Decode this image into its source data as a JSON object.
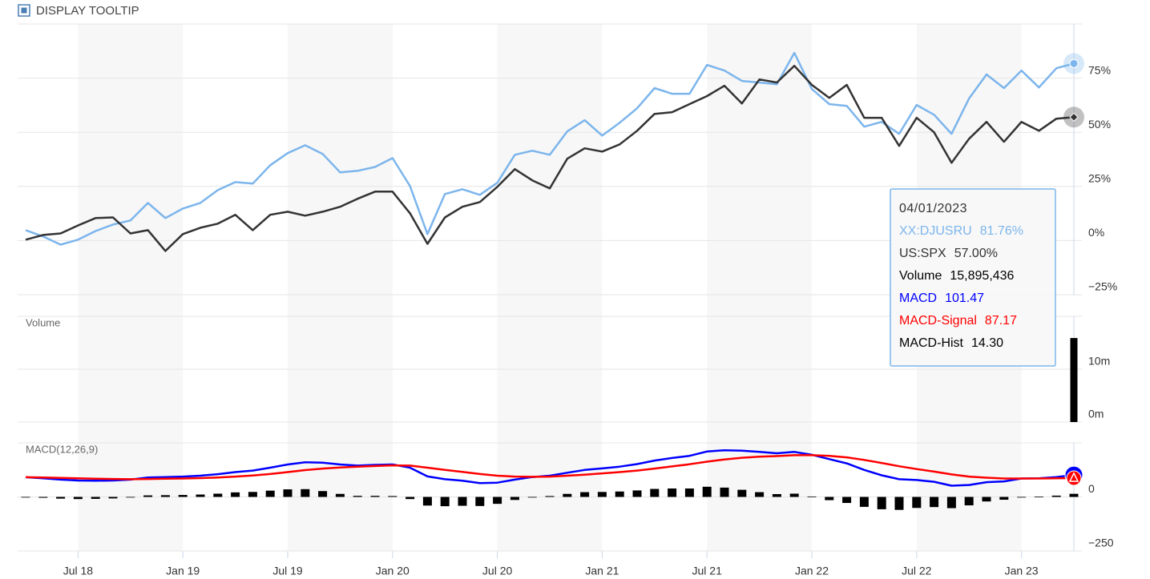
{
  "chart_data": {
    "type": "stock",
    "toggle_label": "DISPLAY TOOLTIP",
    "x": [
      "2018-04",
      "2018-05",
      "2018-06",
      "2018-07",
      "2018-08",
      "2018-09",
      "2018-10",
      "2018-11",
      "2018-12",
      "2019-01",
      "2019-02",
      "2019-03",
      "2019-04",
      "2019-05",
      "2019-06",
      "2019-07",
      "2019-08",
      "2019-09",
      "2019-10",
      "2019-11",
      "2019-12",
      "2020-01",
      "2020-02",
      "2020-03",
      "2020-04",
      "2020-05",
      "2020-06",
      "2020-07",
      "2020-08",
      "2020-09",
      "2020-10",
      "2020-11",
      "2020-12",
      "2021-01",
      "2021-02",
      "2021-03",
      "2021-04",
      "2021-05",
      "2021-06",
      "2021-07",
      "2021-08",
      "2021-09",
      "2021-10",
      "2021-11",
      "2021-12",
      "2022-01",
      "2022-02",
      "2022-03",
      "2022-04",
      "2022-05",
      "2022-06",
      "2022-07",
      "2022-08",
      "2022-09",
      "2022-10",
      "2022-11",
      "2022-12",
      "2023-01",
      "2023-02",
      "2023-03",
      "2023-04"
    ],
    "xticks": [
      {
        "value": "2018-07",
        "label": "Jul 18"
      },
      {
        "value": "2019-01",
        "label": "Jan 19"
      },
      {
        "value": "2019-07",
        "label": "Jul 19"
      },
      {
        "value": "2020-01",
        "label": "Jan 20"
      },
      {
        "value": "2020-07",
        "label": "Jul 20"
      },
      {
        "value": "2021-01",
        "label": "Jan 21"
      },
      {
        "value": "2021-07",
        "label": "Jul 21"
      },
      {
        "value": "2022-01",
        "label": "Jan 22"
      },
      {
        "value": "2022-07",
        "label": "Jul 22"
      },
      {
        "value": "2023-01",
        "label": "Jan 23"
      }
    ],
    "panels": [
      {
        "type": "line",
        "ylim": [
          -25,
          100
        ],
        "yticks": [
          {
            "value": -25,
            "label": "−25%"
          },
          {
            "value": 0,
            "label": "0%"
          },
          {
            "value": 25,
            "label": "25%"
          },
          {
            "value": 50,
            "label": "50%"
          },
          {
            "value": 75,
            "label": "75%"
          }
        ],
        "series": [
          {
            "name": "XX:DJUSRU",
            "color": "#7cb5ec",
            "values": [
              4.8,
              1.9,
              -1.9,
              0.4,
              4.4,
              7.4,
              9.3,
              17.4,
              10.4,
              14.8,
              17.4,
              23.3,
              27,
              26.3,
              34.8,
              40.4,
              44,
              40,
              31.5,
              32.2,
              34,
              38.1,
              25.2,
              3,
              21.5,
              23.7,
              21.1,
              26.7,
              39.6,
              41.5,
              39.6,
              50.4,
              55.6,
              48.5,
              54.4,
              61.1,
              70.4,
              67.8,
              67.8,
              81.1,
              78.5,
              73.7,
              73,
              72.2,
              86.7,
              70,
              63,
              62.2,
              52.6,
              54.8,
              49.3,
              62.6,
              58.1,
              49.3,
              65.6,
              76.7,
              70.4,
              78.5,
              70.7,
              79.6,
              81.76
            ]
          },
          {
            "name": "US:SPX",
            "color": "#333333",
            "values": [
              0.4,
              2.6,
              3.3,
              7,
              10.4,
              10.7,
              3.3,
              4.8,
              -4.8,
              3,
              5.9,
              7.8,
              11.9,
              4.8,
              11.9,
              13.3,
              11.5,
              13.3,
              15.6,
              19.3,
              22.6,
              22.6,
              12.6,
              -1.5,
              10.7,
              15.6,
              17.8,
              24.8,
              33,
              27.8,
              24.1,
              37.8,
              42.6,
              41.1,
              44.4,
              50.7,
              58.5,
              59.3,
              63,
              66.7,
              71.5,
              63.3,
              74.4,
              73,
              80.7,
              71.9,
              65.9,
              71.9,
              56.7,
              56.7,
              43.7,
              56.7,
              50,
              35.9,
              47,
              54.8,
              45.6,
              54.8,
              50.7,
              56.3,
              57
            ]
          }
        ]
      },
      {
        "type": "bar",
        "title": "Volume",
        "ylim": [
          0,
          20000000
        ],
        "yticks": [
          {
            "value": 0,
            "label": "0m"
          },
          {
            "value": 10000000,
            "label": "10m"
          }
        ],
        "series": [
          {
            "name": "Volume",
            "color": "#000000",
            "values": [
              null,
              null,
              null,
              null,
              null,
              null,
              null,
              null,
              null,
              null,
              null,
              null,
              null,
              null,
              null,
              null,
              null,
              null,
              null,
              null,
              null,
              null,
              null,
              null,
              null,
              null,
              null,
              null,
              null,
              null,
              null,
              null,
              null,
              null,
              null,
              null,
              null,
              null,
              null,
              null,
              null,
              null,
              null,
              null,
              null,
              null,
              null,
              null,
              null,
              null,
              null,
              null,
              null,
              null,
              null,
              null,
              null,
              null,
              null,
              null,
              15895436
            ]
          }
        ]
      },
      {
        "type": "macd",
        "title": "MACD(12,26,9)",
        "ylim": [
          -250,
          250
        ],
        "yticks": [
          {
            "value": -250,
            "label": "−250"
          },
          0
        ],
        "series": [
          {
            "name": "MACD",
            "color": "#0000ff",
            "values": [
              91,
              86,
              80,
              76,
              75,
              76,
              80,
              90,
              92,
              94,
              98,
              105,
              115,
              122,
              135,
              150,
              160,
              158,
              150,
              145,
              148,
              150,
              135,
              95,
              82,
              75,
              64,
              66,
              80,
              92,
              98,
              112,
              125,
              132,
              140,
              152,
              168,
              180,
              190,
              210,
              216,
              214,
              208,
              202,
              208,
              195,
              175,
              155,
              125,
              100,
              82,
              78,
              70,
              52,
              55,
              68,
              72,
              85,
              86,
              92,
              101.47
            ]
          },
          {
            "name": "MACD-Signal",
            "color": "#ff0000",
            "values": [
              91,
              90,
              88,
              86,
              84,
              83,
              82,
              83,
              84,
              85,
              87,
              90,
              94,
              99,
              106,
              115,
              124,
              131,
              136,
              140,
              143,
              146,
              145,
              135,
              125,
              116,
              106,
              98,
              94,
              93,
              94,
              98,
              103,
              109,
              115,
              122,
              131,
              141,
              151,
              163,
              173,
              181,
              186,
              189,
              193,
              193,
              190,
              183,
              171,
              157,
              142,
              129,
              117,
              104,
              94,
              89,
              85,
              85,
              85,
              86,
              87.17
            ]
          },
          {
            "name": "MACD-Hist",
            "color": "#000000",
            "kind": "bar",
            "values": [
              0,
              -4,
              -8,
              -10,
              -9,
              -7,
              -2,
              7,
              8,
              9,
              11,
              15,
              21,
              23,
              29,
              35,
              36,
              27,
              14,
              5,
              5,
              4,
              -10,
              -40,
              -43,
              -41,
              -42,
              -32,
              -14,
              -1,
              4,
              14,
              22,
              23,
              25,
              30,
              37,
              39,
              39,
              47,
              43,
              33,
              22,
              13,
              15,
              2,
              -15,
              -28,
              -46,
              -57,
              -60,
              -51,
              -47,
              -52,
              -39,
              -21,
              -13,
              0,
              1,
              6,
              14.3
            ]
          }
        ]
      }
    ],
    "tooltip": {
      "date": "04/01/2023",
      "value_labels": [
        "81.76%",
        "57.00%",
        "15,895,436",
        "101.47",
        "87.17",
        "14.30"
      ]
    }
  }
}
